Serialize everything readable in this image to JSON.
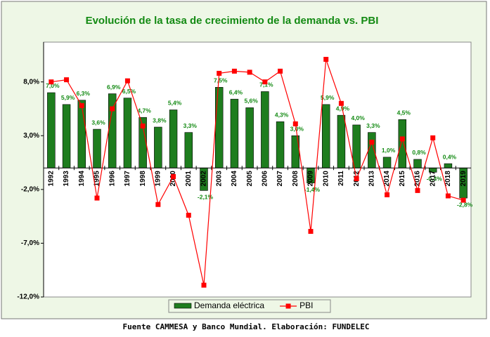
{
  "chart_data": {
    "type": "combo",
    "title": "Evolución de la tasa de crecimiento de la demanda vs. PBI",
    "source": "Fuente CAMMESA y Banco Mundial. Elaboración: FUNDELEC",
    "categories": [
      "1992",
      "1993",
      "1994",
      "1995",
      "1996",
      "1997",
      "1998",
      "1999",
      "2000",
      "2001",
      "2002",
      "2003",
      "2004",
      "2005",
      "2006",
      "2007",
      "2008",
      "2009",
      "2010",
      "2011",
      "2012",
      "2013",
      "2014",
      "2015",
      "2016",
      "2017",
      "2018",
      "2019"
    ],
    "ylim": [
      -12,
      11.7
    ],
    "yticks": [
      {
        "value": -12,
        "label": "-12,0%"
      },
      {
        "value": -7,
        "label": "-7,0%"
      },
      {
        "value": -2,
        "label": "-2,0%"
      },
      {
        "value": 3,
        "label": "3,0%"
      },
      {
        "value": 8,
        "label": "8,0%"
      }
    ],
    "grid": false,
    "legend": "bottom",
    "series": [
      {
        "name": "Demanda eléctrica",
        "type": "bar",
        "color": "#1e7d1e",
        "values": [
          7.0,
          5.9,
          6.3,
          3.6,
          6.9,
          6.5,
          4.7,
          3.8,
          5.4,
          3.3,
          -2.1,
          7.5,
          6.4,
          5.6,
          7.1,
          4.3,
          3.0,
          -1.4,
          5.9,
          4.9,
          4.0,
          3.3,
          1.0,
          4.5,
          0.8,
          -0.4,
          0.4,
          -2.8
        ],
        "value_labels": [
          "7,0%",
          "5,9%",
          "6,3%",
          "3,6%",
          "6,9%",
          "6,5%",
          "4,7%",
          "3,8%",
          "5,4%",
          "3,3%",
          "-2,1%",
          "7,5%",
          "6,4%",
          "5,6%",
          "7,1%",
          "4,3%",
          "3,0%",
          "-1,4%",
          "5,9%",
          "4,9%",
          "4,0%",
          "3,3%",
          "1,0%",
          "4,5%",
          "0,8%",
          "-0,4%",
          "0,4%",
          "-2,8%"
        ]
      },
      {
        "name": "PBI",
        "type": "line",
        "color": "#ff0000",
        "values": [
          8.0,
          8.2,
          5.8,
          -2.8,
          5.5,
          8.1,
          3.9,
          -3.4,
          -0.8,
          -4.4,
          -10.9,
          8.8,
          9.0,
          8.9,
          8.0,
          9.0,
          4.1,
          -5.9,
          10.1,
          6.0,
          -1.0,
          2.4,
          -2.5,
          2.7,
          -2.1,
          2.8,
          -2.6,
          -3.0
        ]
      }
    ]
  }
}
